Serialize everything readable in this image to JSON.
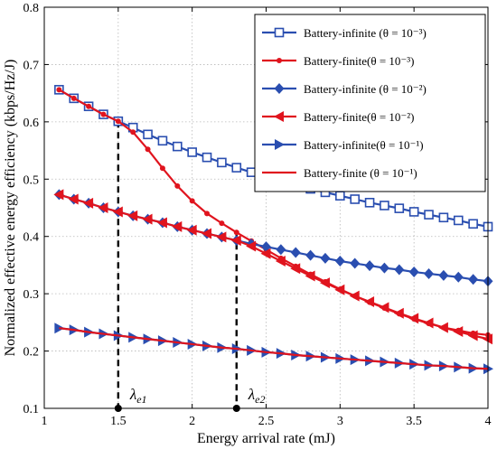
{
  "chart_data": {
    "type": "line",
    "title": "",
    "xlabel": "Energy arrival rate (mJ)",
    "ylabel": "Normalized effective energy efficiency (kbps/Hz/J)",
    "xlim": [
      1,
      4
    ],
    "ylim": [
      0.1,
      0.8
    ],
    "xticks": [
      1,
      1.5,
      2,
      2.5,
      3,
      3.5,
      4
    ],
    "yticks": [
      0.1,
      0.2,
      0.3,
      0.4,
      0.5,
      0.6,
      0.7,
      0.8
    ],
    "xtick_labels": [
      "1",
      "1.5",
      "2",
      "2.5",
      "3",
      "3.5",
      "4"
    ],
    "ytick_labels": [
      "0.1",
      "0.2",
      "0.3",
      "0.4",
      "0.5",
      "0.6",
      "0.7",
      "0.8"
    ],
    "grid": true,
    "legend_position": "top-right",
    "x": [
      1.1,
      1.2,
      1.3,
      1.4,
      1.5,
      1.6,
      1.7,
      1.8,
      1.9,
      2.0,
      2.1,
      2.2,
      2.3,
      2.4,
      2.5,
      2.6,
      2.7,
      2.8,
      2.9,
      3.0,
      3.1,
      3.2,
      3.3,
      3.4,
      3.5,
      3.6,
      3.7,
      3.8,
      3.9,
      4.0
    ],
    "series": [
      {
        "name": "Battery-infinite (θ = 10⁻³)",
        "color": "#2a4eb0",
        "marker": "square",
        "values": [
          0.656,
          0.641,
          0.627,
          0.613,
          0.601,
          0.59,
          0.578,
          0.567,
          0.557,
          0.547,
          0.538,
          0.529,
          0.52,
          0.512,
          0.504,
          0.497,
          0.49,
          0.483,
          0.477,
          0.471,
          0.465,
          0.459,
          0.454,
          0.449,
          0.443,
          0.438,
          0.433,
          0.428,
          0.422,
          0.417
        ]
      },
      {
        "name": "Battery-finite(θ = 10⁻³)",
        "color": "#e0141e",
        "marker": "dot",
        "values": [
          0.656,
          0.641,
          0.627,
          0.613,
          0.601,
          0.582,
          0.552,
          0.519,
          0.488,
          0.462,
          0.44,
          0.423,
          0.407,
          0.392,
          0.377,
          0.362,
          0.348,
          0.334,
          0.321,
          0.308,
          0.296,
          0.285,
          0.275,
          0.265,
          0.256,
          0.248,
          0.241,
          0.236,
          0.231,
          0.228
        ]
      },
      {
        "name": "Battery-infinite (θ = 10⁻²)",
        "color": "#2a4eb0",
        "marker": "diamond",
        "values": [
          0.473,
          0.465,
          0.458,
          0.45,
          0.443,
          0.436,
          0.43,
          0.424,
          0.417,
          0.411,
          0.405,
          0.399,
          0.393,
          0.387,
          0.382,
          0.377,
          0.372,
          0.367,
          0.362,
          0.357,
          0.353,
          0.349,
          0.345,
          0.342,
          0.338,
          0.335,
          0.332,
          0.329,
          0.325,
          0.322
        ]
      },
      {
        "name": "Battery-finite(θ = 10⁻²)",
        "color": "#e0141e",
        "marker": "triangle-left",
        "values": [
          0.473,
          0.465,
          0.458,
          0.45,
          0.443,
          0.436,
          0.43,
          0.424,
          0.417,
          0.411,
          0.405,
          0.399,
          0.393,
          0.383,
          0.37,
          0.357,
          0.344,
          0.331,
          0.319,
          0.307,
          0.296,
          0.286,
          0.276,
          0.266,
          0.257,
          0.249,
          0.241,
          0.234,
          0.227,
          0.221
        ]
      },
      {
        "name": "Battery-infinite(θ = 10⁻¹)",
        "color": "#2a4eb0",
        "marker": "triangle-right",
        "values": [
          0.24,
          0.237,
          0.233,
          0.23,
          0.227,
          0.224,
          0.221,
          0.218,
          0.215,
          0.212,
          0.209,
          0.206,
          0.204,
          0.201,
          0.198,
          0.196,
          0.193,
          0.191,
          0.189,
          0.187,
          0.185,
          0.183,
          0.181,
          0.179,
          0.177,
          0.175,
          0.174,
          0.172,
          0.17,
          0.169
        ]
      },
      {
        "name": "Battery-finite (θ = 10⁻¹)",
        "color": "#e0141e",
        "marker": "none",
        "values": [
          0.24,
          0.237,
          0.233,
          0.23,
          0.227,
          0.224,
          0.221,
          0.218,
          0.215,
          0.212,
          0.209,
          0.206,
          0.204,
          0.201,
          0.198,
          0.196,
          0.193,
          0.191,
          0.189,
          0.187,
          0.185,
          0.183,
          0.181,
          0.179,
          0.177,
          0.175,
          0.174,
          0.172,
          0.17,
          0.169
        ]
      }
    ],
    "annotations": [
      {
        "label": "λe1",
        "base": "λ",
        "sub": "e1",
        "x": 1.5,
        "y_top": 0.601
      },
      {
        "label": "λe2",
        "base": "λ",
        "sub": "e2",
        "x": 2.3,
        "y_top": 0.407
      }
    ]
  }
}
